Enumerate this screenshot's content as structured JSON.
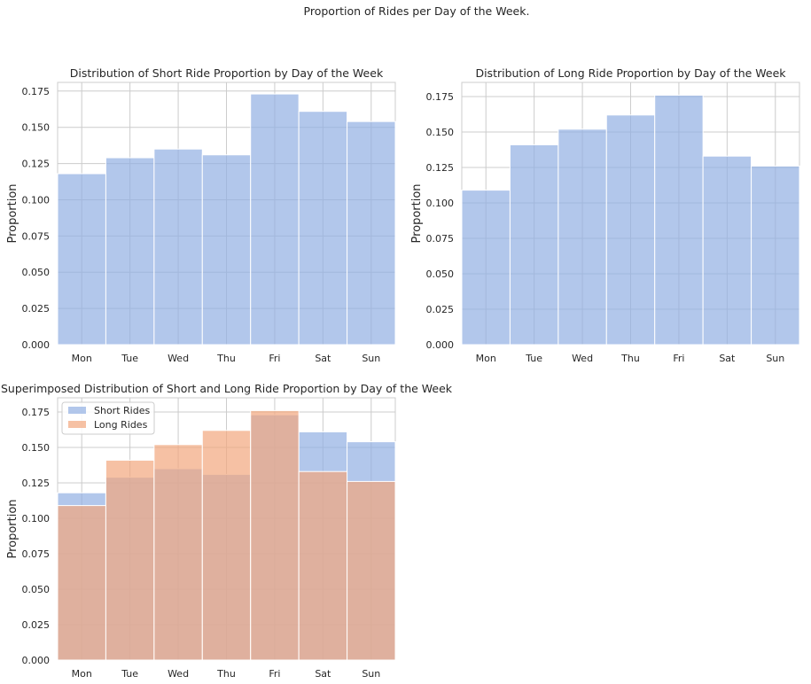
{
  "figure": {
    "suptitle": "Proportion of Rides per Day of the Week."
  },
  "chart_data": [
    {
      "type": "bar",
      "title": "Distribution of Short Ride Proportion by Day of the Week",
      "xlabel": "",
      "ylabel": "Proportion",
      "categories": [
        "Mon",
        "Tue",
        "Wed",
        "Thu",
        "Fri",
        "Sat",
        "Sun"
      ],
      "series": [
        {
          "values": [
            0.118,
            0.129,
            0.135,
            0.131,
            0.173,
            0.161,
            0.154
          ],
          "color": "#92afe3"
        }
      ],
      "ylim": [
        0,
        0.181
      ],
      "yticks": [
        0.0,
        0.025,
        0.05,
        0.075,
        0.1,
        0.125,
        0.15,
        0.175
      ],
      "ytick_labels": [
        "0.000",
        "0.025",
        "0.050",
        "0.075",
        "0.100",
        "0.125",
        "0.150",
        "0.175"
      ],
      "grid": true,
      "legend": null
    },
    {
      "type": "bar",
      "title": "Distribution of Long Ride Proportion by Day of the Week",
      "xlabel": "",
      "ylabel": "Proportion",
      "categories": [
        "Mon",
        "Tue",
        "Wed",
        "Thu",
        "Fri",
        "Sat",
        "Sun"
      ],
      "series": [
        {
          "values": [
            0.109,
            0.141,
            0.152,
            0.162,
            0.176,
            0.133,
            0.126
          ],
          "color": "#92afe3"
        }
      ],
      "ylim": [
        0,
        0.185
      ],
      "yticks": [
        0.0,
        0.025,
        0.05,
        0.075,
        0.1,
        0.125,
        0.15,
        0.175
      ],
      "ytick_labels": [
        "0.000",
        "0.025",
        "0.050",
        "0.075",
        "0.100",
        "0.125",
        "0.150",
        "0.175"
      ],
      "grid": true,
      "legend": null
    },
    {
      "type": "bar",
      "title": "Superimposed Distribution of Short and Long Ride Proportion by Day of the Week",
      "xlabel": "",
      "ylabel": "Proportion",
      "categories": [
        "Mon",
        "Tue",
        "Wed",
        "Thu",
        "Fri",
        "Sat",
        "Sun"
      ],
      "series": [
        {
          "name": "Short Rides",
          "values": [
            0.118,
            0.129,
            0.135,
            0.131,
            0.173,
            0.161,
            0.154
          ],
          "color": "#92afe3"
        },
        {
          "name": "Long Rides",
          "values": [
            0.109,
            0.141,
            0.152,
            0.162,
            0.176,
            0.133,
            0.126
          ],
          "color": "#f2a77d"
        }
      ],
      "overlap_color": "#c9a9a6",
      "ylim": [
        0,
        0.185
      ],
      "yticks": [
        0.0,
        0.025,
        0.05,
        0.075,
        0.1,
        0.125,
        0.15,
        0.175
      ],
      "ytick_labels": [
        "0.000",
        "0.025",
        "0.050",
        "0.075",
        "0.100",
        "0.125",
        "0.150",
        "0.175"
      ],
      "grid": true,
      "legend": "top-left"
    }
  ]
}
